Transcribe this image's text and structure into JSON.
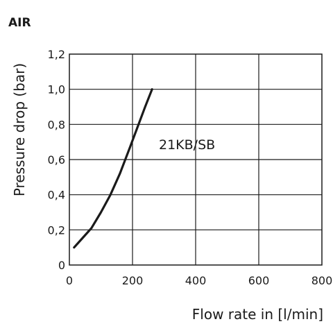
{
  "chart_data": {
    "type": "line",
    "title": "AIR",
    "xlabel": "Flow rate in [l/min]",
    "ylabel": "Pressure drop (bar)",
    "xlim": [
      0,
      800
    ],
    "ylim": [
      0,
      1.2
    ],
    "x_ticks": [
      0,
      200,
      400,
      600,
      800
    ],
    "x_tick_labels": [
      "0",
      "200",
      "400",
      "600",
      "800"
    ],
    "y_ticks": [
      0,
      0.2,
      0.4,
      0.6,
      0.8,
      1.0,
      1.2
    ],
    "y_tick_labels": [
      "0",
      "0,2",
      "0,4",
      "0,6",
      "0,8",
      "1,0",
      "1,2"
    ],
    "grid": true,
    "series": [
      {
        "name": "21KB/SB",
        "color": "#1a1a1a",
        "x": [
          15,
          40,
          70,
          100,
          130,
          160,
          190,
          215,
          240,
          262
        ],
        "y": [
          0.1,
          0.15,
          0.21,
          0.3,
          0.4,
          0.52,
          0.66,
          0.78,
          0.9,
          1.0
        ]
      }
    ]
  }
}
